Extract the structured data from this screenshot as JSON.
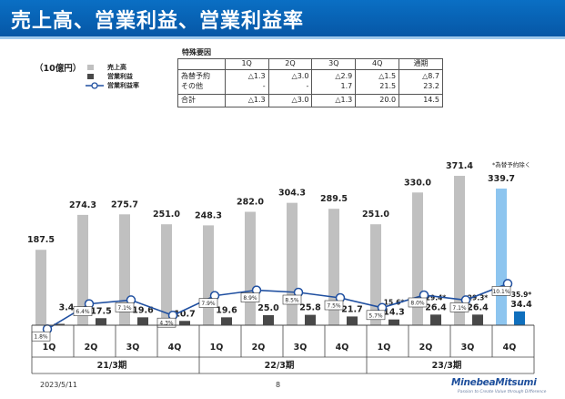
{
  "title": "売上高、営業利益、営業利益率",
  "unit_label": "（10億円）",
  "legend": {
    "sales": "売上高",
    "op_income": "営業利益",
    "op_margin": "営業利益率"
  },
  "special_factors": {
    "title": "特殊要因",
    "headers": [
      "",
      "1Q",
      "2Q",
      "3Q",
      "4Q",
      "通期"
    ],
    "rows": [
      {
        "label": "為替予約",
        "values": [
          "△1.3",
          "△3.0",
          "△2.9",
          "△1.5",
          "△8.7"
        ]
      },
      {
        "label": "その他",
        "values": [
          "-",
          "-",
          "1.7",
          "21.5",
          "23.2"
        ]
      },
      {
        "label": "合計",
        "values": [
          "△1.3",
          "△3.0",
          "△1.3",
          "20.0",
          "14.5"
        ]
      }
    ]
  },
  "note": "*為替予約除く",
  "colors": {
    "title_bar": "#0a6fc4",
    "sales_bar": "#c0c0c0",
    "op_bar": "#484848",
    "forecast_sales_bar": "#8dc5ef",
    "forecast_op_bar": "#0f6fbd",
    "margin_line": "#1f4fa0"
  },
  "chart_data": {
    "type": "bar",
    "categories": [
      "1Q",
      "2Q",
      "3Q",
      "4Q",
      "1Q",
      "2Q",
      "3Q",
      "4Q",
      "1Q",
      "2Q",
      "3Q",
      "4Q"
    ],
    "periods": [
      {
        "label": "21/3期",
        "quarters": 4
      },
      {
        "label": "22/3期",
        "quarters": 4
      },
      {
        "label": "23/3期",
        "quarters": 4
      }
    ],
    "series": [
      {
        "name": "売上高",
        "values": [
          187.5,
          274.3,
          275.7,
          251.0,
          248.3,
          282.0,
          304.3,
          289.5,
          251.0,
          330.0,
          371.4,
          339.7
        ]
      },
      {
        "name": "営業利益",
        "values": [
          3.4,
          17.5,
          19.6,
          10.7,
          19.6,
          25.0,
          25.8,
          21.7,
          14.3,
          26.4,
          26.4,
          34.4
        ]
      },
      {
        "name": "営業利益率",
        "values": [
          "1.8%",
          "6.4%",
          "7.1%",
          "4.3%",
          "7.9%",
          "8.9%",
          "8.5%",
          "7.5%",
          "5.7%",
          "8.0%",
          "7.1%",
          "10.1%"
        ]
      }
    ],
    "op_income_ex_fx": [
      null,
      null,
      null,
      null,
      null,
      null,
      null,
      null,
      "15.6*",
      "29.4*",
      "29.3*",
      "35.9*"
    ],
    "forecast_index": 11,
    "ylim": [
      0,
      400
    ]
  },
  "footer": {
    "date": "2023/5/11",
    "page": "8",
    "brand": "MinebeaMitsumi",
    "tagline": "Passion to Create Value through Difference"
  }
}
